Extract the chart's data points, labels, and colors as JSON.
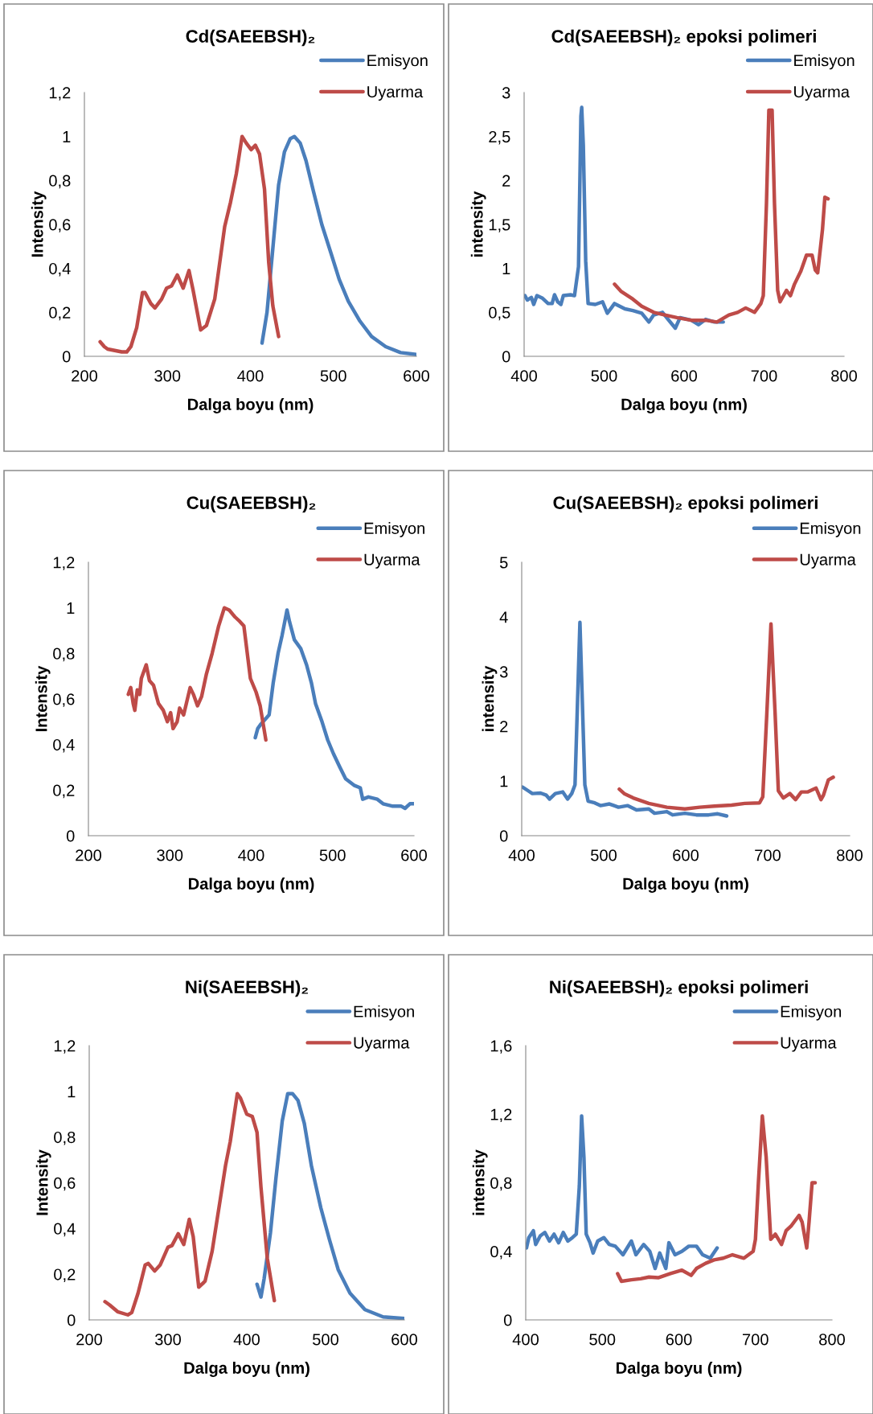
{
  "chart_data": [
    {
      "type": "line",
      "title": "Cd(SAEEBSH)₂",
      "xlabel": "Dalga boyu (nm)",
      "ylabel": "Intensity",
      "legend": "top right",
      "xlim": [
        200,
        600
      ],
      "xticks": [
        200,
        300,
        400,
        500,
        600
      ],
      "ylim": [
        0,
        1.2
      ],
      "yticks": [
        0,
        {
          "value": 0.2,
          "label": "0,2"
        },
        {
          "value": 0.4,
          "label": "0,4"
        },
        {
          "value": 0.6,
          "label": "0,6"
        },
        {
          "value": 0.8,
          "label": "0,8"
        },
        1,
        {
          "value": 1.2,
          "label": "1,2"
        }
      ],
      "series": [
        {
          "name": "Emisyon",
          "color": "#4a7ebb",
          "x": [
            414,
            420,
            427,
            434,
            441,
            448,
            453,
            460,
            467,
            476,
            486,
            497,
            507,
            518,
            532,
            546,
            563,
            581,
            600
          ],
          "values": [
            0.06,
            0.2,
            0.49,
            0.78,
            0.93,
            0.99,
            1.0,
            0.97,
            0.89,
            0.75,
            0.6,
            0.47,
            0.35,
            0.25,
            0.16,
            0.09,
            0.044,
            0.017,
            0.008
          ]
        },
        {
          "name": "Uyarma",
          "color": "#be4b48",
          "x": [
            219,
            224,
            228,
            245,
            251,
            256,
            263,
            270,
            273,
            280,
            285,
            293,
            299,
            305,
            312,
            319,
            326,
            331,
            340,
            347,
            357,
            369,
            376,
            383,
            390,
            395,
            401,
            406,
            411,
            417,
            422,
            427,
            434
          ],
          "values": [
            0.066,
            0.044,
            0.033,
            0.02,
            0.02,
            0.044,
            0.13,
            0.29,
            0.29,
            0.24,
            0.22,
            0.26,
            0.31,
            0.32,
            0.37,
            0.31,
            0.39,
            0.3,
            0.12,
            0.14,
            0.26,
            0.59,
            0.7,
            0.83,
            1.0,
            0.97,
            0.94,
            0.96,
            0.92,
            0.76,
            0.43,
            0.23,
            0.09
          ]
        }
      ]
    },
    {
      "type": "line",
      "title": "Cd(SAEEBSH)₂ epoksi polimeri",
      "xlabel": "Dalga boyu (nm)",
      "ylabel": "intensity",
      "legend": "top right",
      "xlim": [
        400,
        800
      ],
      "xticks": [
        400,
        500,
        600,
        700,
        800
      ],
      "ylim": [
        0,
        3
      ],
      "yticks": [
        0,
        {
          "value": 0.5,
          "label": "0,5"
        },
        1,
        {
          "value": 1.5,
          "label": "1,5"
        },
        2,
        {
          "value": 2.5,
          "label": "2,5"
        },
        3
      ],
      "series": [
        {
          "name": "Emisyon",
          "color": "#4a7ebb",
          "x": [
            401,
            404,
            409,
            412,
            416,
            423,
            430,
            435,
            438,
            442,
            446,
            449,
            458,
            463,
            468,
            471,
            472,
            474,
            477,
            480,
            489,
            498,
            504,
            509,
            513,
            526,
            536,
            547,
            556,
            562,
            573,
            580,
            589,
            595,
            609,
            618,
            627,
            638,
            649
          ],
          "values": [
            0.69,
            0.64,
            0.67,
            0.59,
            0.69,
            0.66,
            0.6,
            0.6,
            0.7,
            0.62,
            0.59,
            0.69,
            0.7,
            0.69,
            1.02,
            2.73,
            2.83,
            2.4,
            1.08,
            0.6,
            0.59,
            0.62,
            0.49,
            0.55,
            0.6,
            0.54,
            0.52,
            0.49,
            0.39,
            0.47,
            0.5,
            0.42,
            0.32,
            0.44,
            0.41,
            0.36,
            0.42,
            0.39,
            0.39
          ]
        },
        {
          "name": "Uyarma",
          "color": "#be4b48",
          "x": [
            513,
            521,
            536,
            547,
            562,
            576,
            591,
            609,
            627,
            641,
            656,
            667,
            677,
            688,
            696,
            699,
            703,
            706,
            710,
            713,
            717,
            720,
            728,
            733,
            738,
            746,
            753,
            760,
            764,
            767,
            773,
            776,
            780
          ],
          "values": [
            0.82,
            0.74,
            0.65,
            0.57,
            0.5,
            0.47,
            0.44,
            0.41,
            0.41,
            0.39,
            0.47,
            0.5,
            0.55,
            0.5,
            0.6,
            0.69,
            1.74,
            2.8,
            2.8,
            1.74,
            0.75,
            0.62,
            0.75,
            0.69,
            0.82,
            0.97,
            1.15,
            1.15,
            0.98,
            0.95,
            1.44,
            1.81,
            1.79
          ]
        }
      ]
    },
    {
      "type": "line",
      "title": "Cu(SAEEBSH)₂",
      "xlabel": "Dalga boyu (nm)",
      "ylabel": "Intensity",
      "legend": "top right",
      "xlim": [
        200,
        600
      ],
      "xticks": [
        200,
        300,
        400,
        500,
        600
      ],
      "ylim": [
        0,
        1.2
      ],
      "yticks": [
        0,
        {
          "value": 0.2,
          "label": "0,2"
        },
        {
          "value": 0.4,
          "label": "0,4"
        },
        {
          "value": 0.6,
          "label": "0,6"
        },
        {
          "value": 0.8,
          "label": "0,8"
        },
        1,
        {
          "value": 1.2,
          "label": "1,2"
        }
      ],
      "series": [
        {
          "name": "Emisyon",
          "color": "#4a7ebb",
          "x": [
            405,
            408,
            412,
            417,
            422,
            427,
            433,
            438,
            444,
            447,
            453,
            461,
            468,
            474,
            479,
            487,
            494,
            501,
            509,
            516,
            527,
            534,
            537,
            544,
            555,
            562,
            573,
            584,
            589,
            595,
            600
          ],
          "values": [
            0.43,
            0.47,
            0.49,
            0.51,
            0.53,
            0.67,
            0.8,
            0.88,
            0.99,
            0.94,
            0.86,
            0.82,
            0.75,
            0.67,
            0.58,
            0.5,
            0.42,
            0.36,
            0.3,
            0.25,
            0.22,
            0.21,
            0.16,
            0.17,
            0.16,
            0.14,
            0.13,
            0.13,
            0.12,
            0.14,
            0.14
          ]
        },
        {
          "name": "Uyarma",
          "color": "#be4b48",
          "x": [
            249,
            252,
            255,
            257,
            260,
            263,
            265,
            271,
            275,
            280,
            286,
            292,
            297,
            301,
            304,
            309,
            312,
            317,
            325,
            329,
            334,
            339,
            345,
            352,
            360,
            367,
            373,
            380,
            386,
            391,
            399,
            406,
            411,
            418
          ],
          "values": [
            0.62,
            0.65,
            0.58,
            0.55,
            0.64,
            0.62,
            0.69,
            0.75,
            0.68,
            0.66,
            0.58,
            0.55,
            0.5,
            0.54,
            0.47,
            0.5,
            0.56,
            0.53,
            0.65,
            0.62,
            0.57,
            0.61,
            0.71,
            0.8,
            0.92,
            1.0,
            0.99,
            0.96,
            0.94,
            0.92,
            0.69,
            0.63,
            0.57,
            0.42
          ]
        }
      ]
    },
    {
      "type": "line",
      "title": "Cu(SAEEBSH)₂ epoksi polimeri",
      "xlabel": "Dalga boyu (nm)",
      "ylabel": "intensity",
      "legend": "top right",
      "xlim": [
        400,
        800
      ],
      "xticks": [
        400,
        500,
        600,
        700,
        800
      ],
      "ylim": [
        0,
        5
      ],
      "yticks": [
        0,
        1,
        2,
        3,
        4,
        5
      ],
      "series": [
        {
          "name": "Emisyon",
          "color": "#4a7ebb",
          "x": [
            401,
            408,
            413,
            423,
            430,
            434,
            441,
            450,
            456,
            461,
            465,
            469,
            471,
            473,
            477,
            481,
            489,
            496,
            507,
            518,
            529,
            540,
            555,
            562,
            577,
            584,
            599,
            613,
            628,
            639,
            650
          ],
          "values": [
            0.89,
            0.82,
            0.77,
            0.78,
            0.74,
            0.67,
            0.77,
            0.8,
            0.67,
            0.77,
            0.93,
            2.91,
            3.9,
            2.91,
            0.93,
            0.63,
            0.6,
            0.55,
            0.58,
            0.52,
            0.55,
            0.47,
            0.49,
            0.41,
            0.44,
            0.38,
            0.41,
            0.38,
            0.38,
            0.4,
            0.36
          ]
        },
        {
          "name": "Uyarma",
          "color": "#be4b48",
          "x": [
            519,
            525,
            536,
            555,
            577,
            599,
            617,
            635,
            656,
            672,
            690,
            694,
            699,
            704,
            709,
            713,
            719,
            727,
            734,
            741,
            749,
            759,
            765,
            768,
            774,
            780
          ],
          "values": [
            0.85,
            0.77,
            0.69,
            0.59,
            0.52,
            0.49,
            0.52,
            0.54,
            0.56,
            0.59,
            0.6,
            0.71,
            2.25,
            3.87,
            2.25,
            0.82,
            0.69,
            0.77,
            0.66,
            0.8,
            0.8,
            0.87,
            0.66,
            0.74,
            1.02,
            1.07
          ]
        }
      ]
    },
    {
      "type": "line",
      "title": "Ni(SAEEBSH)₂",
      "xlabel": "Dalga boyu (nm)",
      "ylabel": "Intensity",
      "legend": "top right",
      "xlim": [
        200,
        600
      ],
      "xticks": [
        200,
        300,
        400,
        500,
        600
      ],
      "ylim": [
        0,
        1.2
      ],
      "yticks": [
        0,
        {
          "value": 0.2,
          "label": "0,2"
        },
        {
          "value": 0.4,
          "label": "0,4"
        },
        {
          "value": 0.6,
          "label": "0,6"
        },
        {
          "value": 0.8,
          "label": "0,8"
        },
        1,
        {
          "value": 1.2,
          "label": "1,2"
        }
      ],
      "series": [
        {
          "name": "Emisyon",
          "color": "#4a7ebb",
          "x": [
            413,
            418,
            422,
            430,
            437,
            445,
            452,
            458,
            465,
            473,
            482,
            494,
            505,
            516,
            531,
            550,
            573,
            600
          ],
          "values": [
            0.156,
            0.1,
            0.18,
            0.38,
            0.62,
            0.87,
            0.99,
            0.99,
            0.96,
            0.86,
            0.675,
            0.49,
            0.35,
            0.22,
            0.117,
            0.045,
            0.013,
            0.006
          ]
        },
        {
          "name": "Uyarma",
          "color": "#be4b48",
          "x": [
            220,
            226,
            236,
            249,
            254,
            262,
            271,
            275,
            283,
            290,
            300,
            305,
            313,
            320,
            327,
            332,
            339,
            347,
            356,
            366,
            373,
            379,
            388,
            392,
            400,
            407,
            413,
            418,
            426,
            435
          ],
          "values": [
            0.08,
            0.065,
            0.036,
            0.022,
            0.032,
            0.117,
            0.24,
            0.247,
            0.214,
            0.24,
            0.318,
            0.325,
            0.377,
            0.33,
            0.44,
            0.364,
            0.143,
            0.169,
            0.3,
            0.52,
            0.675,
            0.78,
            0.99,
            0.97,
            0.9,
            0.89,
            0.82,
            0.58,
            0.27,
            0.084
          ]
        }
      ]
    },
    {
      "type": "line",
      "title": "Ni(SAEEBSH)₂ epoksi polimeri",
      "xlabel": "Dalga boyu (nm)",
      "ylabel": "intensity",
      "legend": "top right",
      "xlim": [
        400,
        800
      ],
      "xticks": [
        400,
        500,
        600,
        700,
        800
      ],
      "ylim": [
        0,
        1.6
      ],
      "yticks": [
        0,
        {
          "value": 0.4,
          "label": "0,4"
        },
        {
          "value": 0.8,
          "label": "0,8"
        },
        {
          "value": 1.2,
          "label": "1,2"
        },
        {
          "value": 1.6,
          "label": "1,6"
        }
      ],
      "series": [
        {
          "name": "Emisyon",
          "color": "#4a7ebb",
          "x": [
            401,
            404,
            410,
            413,
            419,
            425,
            431,
            437,
            443,
            449,
            455,
            461,
            466,
            470,
            473,
            476,
            479,
            484,
            488,
            494,
            502,
            509,
            517,
            527,
            538,
            544,
            554,
            562,
            569,
            575,
            583,
            587,
            595,
            604,
            613,
            623,
            631,
            641,
            650
          ],
          "values": [
            0.42,
            0.48,
            0.52,
            0.44,
            0.49,
            0.51,
            0.46,
            0.5,
            0.45,
            0.51,
            0.46,
            0.48,
            0.5,
            0.78,
            1.19,
            0.95,
            0.5,
            0.45,
            0.39,
            0.46,
            0.48,
            0.44,
            0.43,
            0.38,
            0.46,
            0.38,
            0.44,
            0.4,
            0.3,
            0.39,
            0.3,
            0.45,
            0.38,
            0.4,
            0.43,
            0.43,
            0.38,
            0.36,
            0.42
          ]
        },
        {
          "name": "Uyarma",
          "color": "#be4b48",
          "x": [
            520,
            525,
            538,
            550,
            561,
            573,
            589,
            604,
            616,
            623,
            635,
            646,
            658,
            670,
            685,
            697,
            700,
            704,
            709,
            714,
            720,
            726,
            734,
            740,
            747,
            757,
            761,
            767,
            770,
            774,
            778
          ],
          "values": [
            0.27,
            0.225,
            0.234,
            0.24,
            0.25,
            0.246,
            0.27,
            0.29,
            0.26,
            0.3,
            0.33,
            0.35,
            0.36,
            0.38,
            0.36,
            0.4,
            0.47,
            0.81,
            1.19,
            0.95,
            0.47,
            0.5,
            0.44,
            0.52,
            0.55,
            0.61,
            0.57,
            0.42,
            0.57,
            0.8,
            0.8
          ]
        }
      ]
    }
  ]
}
